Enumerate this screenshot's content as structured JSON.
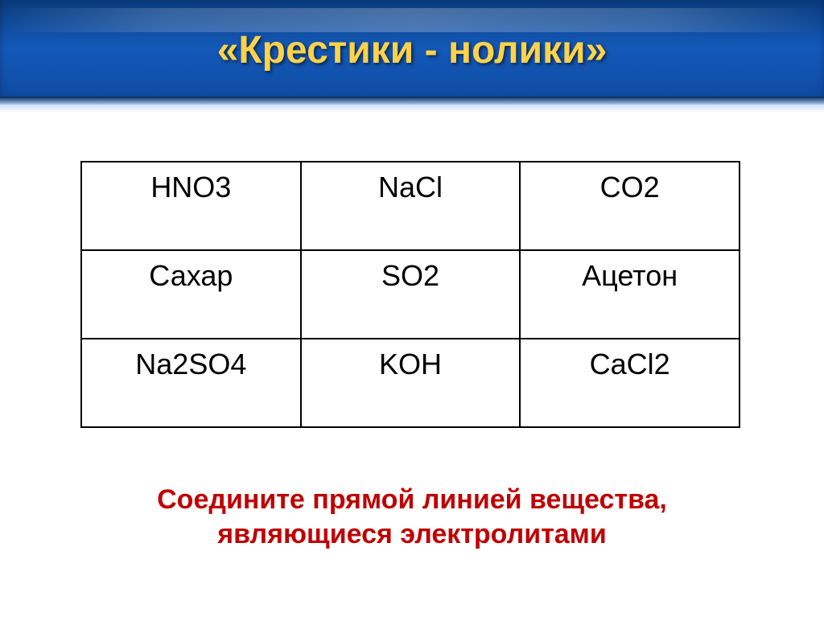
{
  "title": "«Крестики - нолики»",
  "table": {
    "rows": [
      [
        "HNO3",
        "NaCl",
        "CO2"
      ],
      [
        "Сахар",
        "SO2",
        "Ацетон"
      ],
      [
        "Na2SO4",
        "KOH",
        "CaCl2"
      ]
    ]
  },
  "subtitle": {
    "line1": "Соедините прямой линией вещества,",
    "line2": "являющиеся электролитами"
  },
  "colors": {
    "title_color": "#ffd24a",
    "header_bg_top": "#0a3a7a",
    "header_bg_mid": "#1359b8",
    "subtitle_color": "#c00000",
    "table_border": "#000000",
    "cell_text": "#000000",
    "slide_bg": "#ffffff"
  },
  "fonts": {
    "title_size": 48,
    "cell_size": 36,
    "subtitle_size": 34
  }
}
